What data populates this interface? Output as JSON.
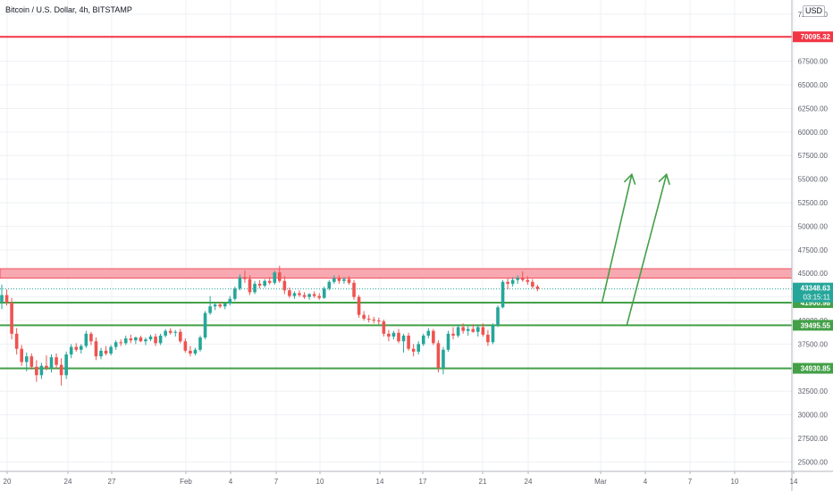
{
  "header": {
    "title": "Bitcoin / U.S. Dollar, 4h, BITSTAMP",
    "currency": "USD"
  },
  "chart_data": {
    "type": "candlestick",
    "x_ticks": [
      "20",
      "24",
      "27",
      "Feb",
      "4",
      "7",
      "10",
      "14",
      "17",
      "21",
      "24",
      "Mar",
      "4",
      "7",
      "10",
      "14"
    ],
    "y_ticks": [
      "25000.00",
      "27500.00",
      "30000.00",
      "32500.00",
      "35000.00",
      "37500.00",
      "40000.00",
      "42500.00",
      "45000.00",
      "47500.00",
      "50000.00",
      "52500.00",
      "55000.00",
      "57500.00",
      "60000.00",
      "62500.00",
      "65000.00",
      "67500.00",
      "72500.00"
    ],
    "ylim": [
      24000,
      74000
    ],
    "levels": [
      {
        "value": 70095.32,
        "label": "70095.32",
        "color": "#f23645"
      },
      {
        "value": 41900.98,
        "label": "41900.98",
        "color": "#43a047"
      },
      {
        "value": 39495.55,
        "label": "39495.55",
        "color": "#43a047"
      },
      {
        "value": 34930.85,
        "label": "34930.85",
        "color": "#43a047"
      }
    ],
    "resistance_zone": {
      "low": 44500,
      "high": 45500,
      "color": "#f7a8b0"
    },
    "current_price": {
      "value": 43348.63,
      "label": "43348.63",
      "countdown": "03:15:11",
      "color": "#26a69a"
    },
    "candles": [
      [
        42000,
        43800,
        41200,
        42700
      ],
      [
        42700,
        43300,
        41600,
        41900
      ],
      [
        41900,
        42400,
        38000,
        38600
      ],
      [
        38600,
        39200,
        36400,
        37000
      ],
      [
        37000,
        37400,
        35200,
        35600
      ],
      [
        35600,
        36600,
        34600,
        36200
      ],
      [
        36200,
        36500,
        34800,
        35100
      ],
      [
        35100,
        35800,
        33500,
        34200
      ],
      [
        34200,
        35500,
        33800,
        35200
      ],
      [
        35200,
        36300,
        34700,
        35000
      ],
      [
        35000,
        36400,
        34500,
        36100
      ],
      [
        36100,
        36500,
        34900,
        35300
      ],
      [
        35300,
        36000,
        33100,
        34200
      ],
      [
        34200,
        36700,
        33800,
        36400
      ],
      [
        36400,
        37500,
        36000,
        37200
      ],
      [
        37200,
        37600,
        36700,
        36900
      ],
      [
        36900,
        37500,
        36500,
        37300
      ],
      [
        37300,
        38900,
        37100,
        38600
      ],
      [
        38600,
        38800,
        37400,
        37800
      ],
      [
        37800,
        38200,
        35800,
        36200
      ],
      [
        36200,
        37100,
        35900,
        36800
      ],
      [
        36800,
        37300,
        36300,
        36500
      ],
      [
        36500,
        37400,
        36300,
        37200
      ],
      [
        37200,
        37900,
        36900,
        37700
      ],
      [
        37700,
        38000,
        37300,
        37600
      ],
      [
        37600,
        38400,
        37400,
        38100
      ],
      [
        38100,
        38500,
        37600,
        37900
      ],
      [
        37900,
        38300,
        37500,
        38200
      ],
      [
        38200,
        38400,
        37700,
        37800
      ],
      [
        37800,
        38200,
        37400,
        38000
      ],
      [
        38000,
        38500,
        37800,
        38300
      ],
      [
        38300,
        38600,
        37300,
        37600
      ],
      [
        37600,
        38600,
        37400,
        38400
      ],
      [
        38400,
        39100,
        38200,
        38900
      ],
      [
        38900,
        39200,
        38500,
        38700
      ],
      [
        38700,
        39000,
        38300,
        38800
      ],
      [
        38800,
        39100,
        37600,
        37800
      ],
      [
        37800,
        38100,
        36600,
        36800
      ],
      [
        36800,
        37300,
        36200,
        36500
      ],
      [
        36500,
        37100,
        36300,
        36900
      ],
      [
        36900,
        38400,
        36700,
        38200
      ],
      [
        38200,
        41000,
        38000,
        40800
      ],
      [
        40800,
        42600,
        40600,
        41500
      ],
      [
        41500,
        41900,
        41100,
        41700
      ],
      [
        41700,
        42000,
        41300,
        41500
      ],
      [
        41500,
        41900,
        41200,
        41800
      ],
      [
        41800,
        42600,
        41600,
        42300
      ],
      [
        42300,
        43600,
        42100,
        43400
      ],
      [
        43400,
        44900,
        43200,
        44600
      ],
      [
        44600,
        45300,
        44000,
        44400
      ],
      [
        44400,
        44800,
        42700,
        43000
      ],
      [
        43000,
        44200,
        42800,
        43900
      ],
      [
        43900,
        44300,
        43400,
        43700
      ],
      [
        43700,
        44400,
        43500,
        44200
      ],
      [
        44200,
        44600,
        43800,
        44000
      ],
      [
        44000,
        45300,
        43800,
        45100
      ],
      [
        45100,
        45800,
        44000,
        44200
      ],
      [
        44200,
        44700,
        42800,
        43200
      ],
      [
        43200,
        43500,
        42400,
        42600
      ],
      [
        42600,
        43100,
        42300,
        42900
      ],
      [
        42900,
        43200,
        42500,
        42700
      ],
      [
        42700,
        43000,
        42300,
        42500
      ],
      [
        42500,
        42900,
        42200,
        42800
      ],
      [
        42800,
        43100,
        42400,
        42600
      ],
      [
        42600,
        42900,
        42200,
        42400
      ],
      [
        42400,
        43600,
        42300,
        43400
      ],
      [
        43400,
        44300,
        43200,
        44100
      ],
      [
        44100,
        44800,
        43900,
        44500
      ],
      [
        44500,
        44800,
        43900,
        44200
      ],
      [
        44200,
        44600,
        43900,
        44400
      ],
      [
        44400,
        44700,
        43800,
        44000
      ],
      [
        44000,
        44300,
        42200,
        42500
      ],
      [
        42500,
        42700,
        40300,
        40600
      ],
      [
        40600,
        41000,
        40000,
        40200
      ],
      [
        40200,
        40600,
        39800,
        40100
      ],
      [
        40100,
        40400,
        39700,
        40000
      ],
      [
        40000,
        40300,
        39600,
        39900
      ],
      [
        39900,
        40100,
        38300,
        38600
      ],
      [
        38600,
        39000,
        37800,
        38300
      ],
      [
        38300,
        38900,
        38000,
        38700
      ],
      [
        38700,
        39100,
        37600,
        37800
      ],
      [
        37800,
        38600,
        36600,
        38400
      ],
      [
        38400,
        38700,
        36800,
        37000
      ],
      [
        37000,
        37500,
        36200,
        36700
      ],
      [
        36700,
        37800,
        36400,
        37500
      ],
      [
        37500,
        38600,
        37300,
        38400
      ],
      [
        38400,
        39200,
        38100,
        38900
      ],
      [
        38900,
        39100,
        37400,
        37600
      ],
      [
        37600,
        37900,
        34500,
        35000
      ],
      [
        35000,
        37200,
        34300,
        36900
      ],
      [
        36900,
        38900,
        36700,
        38600
      ],
      [
        38600,
        39300,
        38000,
        38400
      ],
      [
        38400,
        39600,
        38200,
        39300
      ],
      [
        39300,
        39700,
        38600,
        38900
      ],
      [
        38900,
        39400,
        38400,
        39100
      ],
      [
        39100,
        39600,
        38700,
        38800
      ],
      [
        38800,
        39500,
        38300,
        39300
      ],
      [
        39300,
        39700,
        38300,
        38500
      ],
      [
        38500,
        39000,
        37300,
        37700
      ],
      [
        37700,
        39700,
        37500,
        39500
      ],
      [
        39500,
        41600,
        39300,
        41400
      ],
      [
        41400,
        44300,
        41300,
        44100
      ],
      [
        44100,
        44500,
        43300,
        43900
      ],
      [
        43900,
        44600,
        43600,
        44300
      ],
      [
        44300,
        44800,
        43900,
        44500
      ],
      [
        44500,
        45200,
        44100,
        44300
      ],
      [
        44300,
        44700,
        43800,
        44100
      ],
      [
        44100,
        44400,
        43400,
        43600
      ],
      [
        43600,
        43800,
        43100,
        43348.63
      ]
    ],
    "arrows": [
      {
        "from": {
          "x_index": 121,
          "y": 41900
        },
        "to": {
          "x_index": 127,
          "y": 55500
        }
      },
      {
        "from": {
          "x_index": 126,
          "y": 39500
        },
        "to": {
          "x_index": 134,
          "y": 55500
        }
      }
    ]
  }
}
